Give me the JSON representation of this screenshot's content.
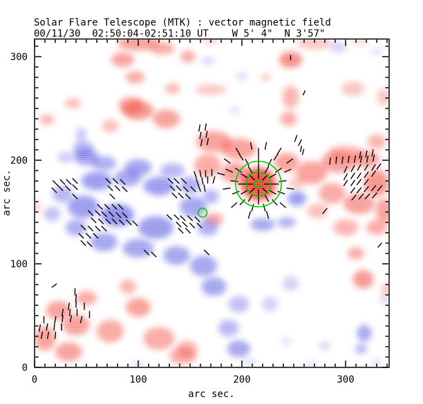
{
  "header": {
    "title_line1": "Solar Flare Telescope (MTK) : vector magnetic field",
    "title_line2": "00/11/30  02:50:04-02:51:10 UT    W 5' 4\"  N 3'57\""
  },
  "chart_data": {
    "type": "heatmap",
    "title": "Solar Flare Telescope (MTK) : vector magnetic field",
    "subtitle": "00/11/30  02:50:04-02:51:10 UT    W 5' 4\"  N 3'57\"",
    "xlabel": "arc sec.",
    "ylabel": "arc sec.",
    "xlim": [
      0,
      342
    ],
    "ylim": [
      0,
      317
    ],
    "xticks": [
      0,
      100,
      200,
      300
    ],
    "yticks": [
      0,
      100,
      200,
      300
    ],
    "xtick_labels": [
      "0",
      "100",
      "200",
      "300"
    ],
    "ytick_labels": [
      "0",
      "100",
      "200",
      "300"
    ],
    "minor_tick_interval": 10,
    "grid": false,
    "legend": "none",
    "colors": {
      "positive_polarity": "#f23c32",
      "negative_polarity": "#4646e0",
      "vector": "#000000",
      "contour": "#00cc00",
      "background": "#ffffff"
    },
    "blob_format": "[x_arcsec, y_arcsec, rx_arcsec, ry_arcsec, opacity]",
    "field_blobs": {
      "positive": [
        [
          100,
          313,
          20,
          7,
          0.5
        ],
        [
          123,
          308,
          12,
          6,
          0.45
        ],
        [
          270,
          313,
          17,
          6,
          0.3
        ],
        [
          170,
          316,
          8,
          4,
          0.25
        ],
        [
          313,
          315,
          8,
          4,
          0.2
        ],
        [
          85,
          297,
          11,
          7,
          0.5
        ],
        [
          97,
          280,
          9,
          6,
          0.45
        ],
        [
          148,
          300,
          7,
          6,
          0.45
        ],
        [
          100,
          248,
          15,
          9,
          0.55
        ],
        [
          127,
          240,
          13,
          9,
          0.5
        ],
        [
          133,
          269,
          7,
          5,
          0.4
        ],
        [
          170,
          268,
          15,
          5,
          0.3
        ],
        [
          37,
          255,
          8,
          5,
          0.35
        ],
        [
          12,
          239,
          7,
          5,
          0.4
        ],
        [
          73,
          233,
          8,
          6,
          0.35
        ],
        [
          93,
          253,
          12,
          8,
          0.5
        ],
        [
          247,
          297,
          11,
          8,
          0.6
        ],
        [
          223,
          280,
          5,
          3,
          0.35
        ],
        [
          247,
          261,
          8,
          11,
          0.4
        ],
        [
          245,
          240,
          8,
          7,
          0.45
        ],
        [
          307,
          269,
          11,
          7,
          0.3
        ],
        [
          337,
          261,
          7,
          8,
          0.3
        ],
        [
          330,
          218,
          9,
          7,
          0.4
        ],
        [
          173,
          218,
          17,
          10,
          0.5
        ],
        [
          197,
          211,
          17,
          10,
          0.5
        ],
        [
          167,
          195,
          13,
          11,
          0.45
        ],
        [
          193,
          188,
          13,
          10,
          0.5
        ],
        [
          216,
          177,
          17,
          16,
          0.85
        ],
        [
          216,
          178,
          8,
          7,
          1
        ],
        [
          243,
          198,
          12,
          9,
          0.5
        ],
        [
          267,
          188,
          15,
          11,
          0.5
        ],
        [
          293,
          198,
          17,
          10,
          0.5
        ],
        [
          320,
          201,
          13,
          8,
          0.5
        ],
        [
          330,
          178,
          12,
          13,
          0.55
        ],
        [
          313,
          158,
          15,
          10,
          0.5
        ],
        [
          337,
          151,
          8,
          12,
          0.5
        ],
        [
          287,
          168,
          13,
          10,
          0.45
        ],
        [
          273,
          151,
          10,
          7,
          0.35
        ],
        [
          300,
          135,
          12,
          8,
          0.4
        ],
        [
          330,
          135,
          10,
          7,
          0.45
        ],
        [
          253,
          178,
          8,
          5,
          0.3
        ],
        [
          300,
          207,
          17,
          7,
          0.4
        ],
        [
          1,
          155,
          4,
          7,
          0.3
        ],
        [
          173,
          143,
          9,
          6,
          0.45
        ],
        [
          23,
          55,
          12,
          9,
          0.5
        ],
        [
          50,
          67,
          10,
          7,
          0.45
        ],
        [
          40,
          41,
          13,
          10,
          0.5
        ],
        [
          10,
          28,
          10,
          12,
          0.5
        ],
        [
          33,
          15,
          13,
          9,
          0.5
        ],
        [
          73,
          35,
          13,
          11,
          0.45
        ],
        [
          100,
          58,
          12,
          9,
          0.5
        ],
        [
          90,
          78,
          8,
          7,
          0.4
        ],
        [
          120,
          28,
          15,
          11,
          0.45
        ],
        [
          143,
          11,
          13,
          8,
          0.45
        ],
        [
          147,
          18,
          10,
          8,
          0.4
        ],
        [
          310,
          110,
          8,
          6,
          0.45
        ],
        [
          317,
          85,
          10,
          9,
          0.55
        ],
        [
          339,
          75,
          5,
          7,
          0.3
        ]
      ],
      "negative": [
        [
          47,
          211,
          10,
          8,
          0.4
        ],
        [
          50,
          203,
          12,
          8,
          0.5
        ],
        [
          30,
          203,
          8,
          5,
          0.3
        ],
        [
          67,
          197,
          12,
          7,
          0.45
        ],
        [
          100,
          193,
          13,
          8,
          0.5
        ],
        [
          133,
          190,
          12,
          7,
          0.4
        ],
        [
          60,
          180,
          15,
          9,
          0.55
        ],
        [
          90,
          183,
          13,
          8,
          0.5
        ],
        [
          120,
          175,
          15,
          9,
          0.55
        ],
        [
          150,
          176,
          10,
          8,
          0.45
        ],
        [
          27,
          167,
          10,
          8,
          0.4
        ],
        [
          47,
          155,
          15,
          11,
          0.55
        ],
        [
          80,
          147,
          16,
          11,
          0.6
        ],
        [
          117,
          135,
          17,
          11,
          0.55
        ],
        [
          153,
          155,
          13,
          10,
          0.5
        ],
        [
          170,
          165,
          8,
          7,
          0.4
        ],
        [
          67,
          121,
          13,
          9,
          0.5
        ],
        [
          100,
          115,
          15,
          9,
          0.5
        ],
        [
          137,
          108,
          13,
          9,
          0.5
        ],
        [
          40,
          135,
          10,
          8,
          0.45
        ],
        [
          17,
          148,
          8,
          7,
          0.35
        ],
        [
          167,
          135,
          10,
          8,
          0.45
        ],
        [
          220,
          138,
          12,
          6,
          0.5
        ],
        [
          243,
          140,
          9,
          5,
          0.45
        ],
        [
          253,
          163,
          9,
          7,
          0.55
        ],
        [
          45,
          225,
          5,
          7,
          0.3
        ],
        [
          163,
          98,
          13,
          10,
          0.5
        ],
        [
          173,
          78,
          12,
          9,
          0.5
        ],
        [
          197,
          61,
          10,
          8,
          0.35
        ],
        [
          187,
          38,
          10,
          8,
          0.4
        ],
        [
          197,
          18,
          11,
          8,
          0.5
        ],
        [
          227,
          61,
          8,
          7,
          0.25
        ],
        [
          247,
          81,
          8,
          7,
          0.25
        ],
        [
          318,
          33,
          7,
          8,
          0.5
        ],
        [
          315,
          18,
          6,
          5,
          0.4
        ],
        [
          280,
          21,
          5,
          4,
          0.25
        ],
        [
          243,
          25,
          5,
          3,
          0.2
        ],
        [
          167,
          296,
          7,
          4,
          0.2
        ],
        [
          200,
          281,
          5,
          4,
          0.2
        ],
        [
          293,
          309,
          8,
          5,
          0.25
        ],
        [
          330,
          305,
          5,
          3,
          0.2
        ],
        [
          193,
          248,
          5,
          3,
          0.2
        ],
        [
          100,
          3,
          5,
          3,
          0.25
        ],
        [
          207,
          5,
          7,
          3,
          0.2
        ],
        [
          267,
          3,
          5,
          3,
          0.2
        ],
        [
          330,
          5,
          5,
          3,
          0.2
        ],
        [
          337,
          65,
          5,
          4,
          0.2
        ]
      ]
    },
    "vector_format": "[x_arcsec, y_arcsec, angle_deg_cw_from_north, length_arcsec(optional, default 7)]",
    "vectors": [
      [
        20,
        178,
        135
      ],
      [
        27,
        179,
        135
      ],
      [
        33,
        179,
        135
      ],
      [
        39,
        180,
        135
      ],
      [
        19,
        171,
        135
      ],
      [
        25,
        173,
        135
      ],
      [
        32,
        173,
        135
      ],
      [
        39,
        174,
        135
      ],
      [
        39,
        165,
        135
      ],
      [
        71,
        180,
        135
      ],
      [
        78,
        180,
        135
      ],
      [
        85,
        179,
        135
      ],
      [
        73,
        173,
        135
      ],
      [
        80,
        173,
        135
      ],
      [
        87,
        172,
        135
      ],
      [
        75,
        165,
        135
      ],
      [
        63,
        155,
        135
      ],
      [
        70,
        155,
        135
      ],
      [
        77,
        155,
        135
      ],
      [
        83,
        155,
        135
      ],
      [
        54,
        149,
        135
      ],
      [
        61,
        149,
        135
      ],
      [
        67,
        148,
        135
      ],
      [
        74,
        148,
        135
      ],
      [
        81,
        147,
        135
      ],
      [
        87,
        147,
        135
      ],
      [
        57,
        142,
        135
      ],
      [
        64,
        141,
        135
      ],
      [
        71,
        141,
        135
      ],
      [
        77,
        141,
        135
      ],
      [
        84,
        140,
        135
      ],
      [
        91,
        140,
        135
      ],
      [
        97,
        139,
        135
      ],
      [
        47,
        135,
        135
      ],
      [
        54,
        134,
        135
      ],
      [
        61,
        134,
        135
      ],
      [
        67,
        134,
        135
      ],
      [
        45,
        127,
        135
      ],
      [
        52,
        127,
        135
      ],
      [
        59,
        127,
        135
      ],
      [
        47,
        120,
        135
      ],
      [
        53,
        119,
        135
      ],
      [
        108,
        111,
        135
      ],
      [
        115,
        109,
        135
      ],
      [
        131,
        180,
        135
      ],
      [
        137,
        180,
        135
      ],
      [
        144,
        180,
        135
      ],
      [
        133,
        173,
        135
      ],
      [
        139,
        173,
        135
      ],
      [
        146,
        172,
        135
      ],
      [
        153,
        172,
        135
      ],
      [
        135,
        166,
        135
      ],
      [
        141,
        166,
        135
      ],
      [
        148,
        165,
        135
      ],
      [
        130,
        145,
        135
      ],
      [
        137,
        145,
        135
      ],
      [
        143,
        144,
        135
      ],
      [
        150,
        144,
        135
      ],
      [
        157,
        143,
        135
      ],
      [
        139,
        138,
        135
      ],
      [
        145,
        138,
        135
      ],
      [
        152,
        137,
        135
      ],
      [
        159,
        137,
        135
      ],
      [
        141,
        132,
        135
      ],
      [
        148,
        132,
        135
      ],
      [
        155,
        186,
        160
      ],
      [
        160,
        187,
        170
      ],
      [
        165,
        187,
        0
      ],
      [
        171,
        188,
        0
      ],
      [
        157,
        179,
        160
      ],
      [
        162,
        180,
        170
      ],
      [
        167,
        181,
        0
      ],
      [
        173,
        181,
        15
      ],
      [
        159,
        173,
        160
      ],
      [
        164,
        173,
        170
      ],
      [
        159,
        231,
        10
      ],
      [
        165,
        232,
        10
      ],
      [
        160,
        224,
        10
      ],
      [
        166,
        225,
        10
      ],
      [
        161,
        217,
        10
      ],
      [
        167,
        218,
        10
      ],
      [
        247,
        299,
        0,
        5
      ],
      [
        260,
        265,
        25,
        5
      ],
      [
        252,
        221,
        20
      ],
      [
        256,
        217,
        25
      ],
      [
        257,
        211,
        10,
        6
      ],
      [
        259,
        208,
        15,
        6
      ],
      [
        314,
        205,
        10
      ],
      [
        320,
        206,
        10
      ],
      [
        326,
        207,
        10
      ],
      [
        285,
        199,
        5
      ],
      [
        291,
        200,
        5
      ],
      [
        297,
        200,
        8
      ],
      [
        303,
        201,
        8
      ],
      [
        309,
        201,
        10
      ],
      [
        315,
        201,
        10
      ],
      [
        321,
        201,
        12
      ],
      [
        327,
        202,
        12
      ],
      [
        300,
        191,
        25
      ],
      [
        307,
        192,
        28
      ],
      [
        313,
        193,
        30
      ],
      [
        320,
        193,
        30
      ],
      [
        327,
        193,
        32
      ],
      [
        332,
        194,
        35
      ],
      [
        300,
        184,
        30
      ],
      [
        307,
        185,
        32
      ],
      [
        313,
        185,
        33
      ],
      [
        320,
        186,
        35
      ],
      [
        327,
        187,
        35
      ],
      [
        300,
        178,
        33
      ],
      [
        307,
        178,
        35
      ],
      [
        313,
        179,
        35
      ],
      [
        320,
        179,
        38
      ],
      [
        307,
        171,
        38
      ],
      [
        313,
        171,
        38
      ],
      [
        320,
        172,
        40
      ],
      [
        327,
        173,
        40
      ],
      [
        333,
        173,
        40
      ],
      [
        308,
        164,
        40
      ],
      [
        315,
        165,
        40
      ],
      [
        321,
        165,
        42
      ],
      [
        328,
        166,
        42
      ],
      [
        280,
        151,
        40
      ],
      [
        333,
        118,
        40,
        6
      ],
      [
        166,
        111,
        135
      ],
      [
        19,
        79,
        55,
        6
      ],
      [
        39,
        73,
        0
      ],
      [
        40,
        67,
        5
      ],
      [
        33,
        59,
        10
      ],
      [
        40,
        61,
        0
      ],
      [
        48,
        59,
        0
      ],
      [
        27,
        53,
        10
      ],
      [
        34,
        53,
        5
      ],
      [
        41,
        53,
        0
      ],
      [
        53,
        51,
        0
      ],
      [
        9,
        46,
        0
      ],
      [
        20,
        46,
        10
      ],
      [
        27,
        47,
        5
      ],
      [
        35,
        47,
        10
      ],
      [
        45,
        46,
        15
      ],
      [
        5,
        38,
        10
      ],
      [
        12,
        39,
        10
      ],
      [
        19,
        39,
        5
      ],
      [
        26,
        39,
        0
      ],
      [
        7,
        31,
        10
      ],
      [
        13,
        31,
        10
      ],
      [
        20,
        31,
        5
      ]
    ],
    "flare_site": {
      "x": 216,
      "y": 177,
      "contour_radii_arcsec": [
        22,
        11.7,
        3.7
      ],
      "vector_rings": [
        {
          "r": 9,
          "n": 8,
          "start": 0,
          "end": 360
        },
        {
          "r": 16,
          "n": 12,
          "start": 0,
          "end": 360
        },
        {
          "r": 23.5,
          "n": 13,
          "start": 0,
          "end": 360
        },
        {
          "r": 31,
          "n": 11,
          "start": 0,
          "end": 360
        },
        {
          "r": 37.5,
          "n": 7,
          "start": -75,
          "end": 75
        }
      ],
      "ring_vector_length_arcsec": 7.5
    },
    "secondary_contour": {
      "x": 162,
      "y": 149.3,
      "radius_arcsec": 4.3
    }
  }
}
